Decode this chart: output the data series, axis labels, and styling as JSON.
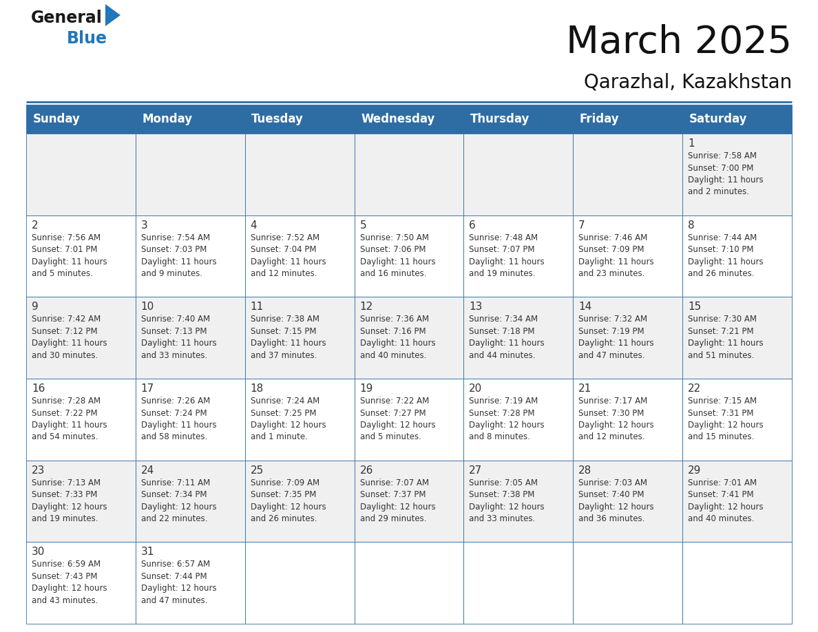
{
  "title": "March 2025",
  "subtitle": "Qarazhal, Kazakhstan",
  "header_bg": "#2E6DA4",
  "header_text": "#FFFFFF",
  "cell_bg_odd": "#F0F0F0",
  "cell_bg_even": "#FFFFFF",
  "border_color": "#2E6DA4",
  "text_color": "#333333",
  "days_of_week": [
    "Sunday",
    "Monday",
    "Tuesday",
    "Wednesday",
    "Thursday",
    "Friday",
    "Saturday"
  ],
  "calendar": [
    [
      {
        "day": null,
        "info": ""
      },
      {
        "day": null,
        "info": ""
      },
      {
        "day": null,
        "info": ""
      },
      {
        "day": null,
        "info": ""
      },
      {
        "day": null,
        "info": ""
      },
      {
        "day": null,
        "info": ""
      },
      {
        "day": 1,
        "info": "Sunrise: 7:58 AM\nSunset: 7:00 PM\nDaylight: 11 hours\nand 2 minutes."
      }
    ],
    [
      {
        "day": 2,
        "info": "Sunrise: 7:56 AM\nSunset: 7:01 PM\nDaylight: 11 hours\nand 5 minutes."
      },
      {
        "day": 3,
        "info": "Sunrise: 7:54 AM\nSunset: 7:03 PM\nDaylight: 11 hours\nand 9 minutes."
      },
      {
        "day": 4,
        "info": "Sunrise: 7:52 AM\nSunset: 7:04 PM\nDaylight: 11 hours\nand 12 minutes."
      },
      {
        "day": 5,
        "info": "Sunrise: 7:50 AM\nSunset: 7:06 PM\nDaylight: 11 hours\nand 16 minutes."
      },
      {
        "day": 6,
        "info": "Sunrise: 7:48 AM\nSunset: 7:07 PM\nDaylight: 11 hours\nand 19 minutes."
      },
      {
        "day": 7,
        "info": "Sunrise: 7:46 AM\nSunset: 7:09 PM\nDaylight: 11 hours\nand 23 minutes."
      },
      {
        "day": 8,
        "info": "Sunrise: 7:44 AM\nSunset: 7:10 PM\nDaylight: 11 hours\nand 26 minutes."
      }
    ],
    [
      {
        "day": 9,
        "info": "Sunrise: 7:42 AM\nSunset: 7:12 PM\nDaylight: 11 hours\nand 30 minutes."
      },
      {
        "day": 10,
        "info": "Sunrise: 7:40 AM\nSunset: 7:13 PM\nDaylight: 11 hours\nand 33 minutes."
      },
      {
        "day": 11,
        "info": "Sunrise: 7:38 AM\nSunset: 7:15 PM\nDaylight: 11 hours\nand 37 minutes."
      },
      {
        "day": 12,
        "info": "Sunrise: 7:36 AM\nSunset: 7:16 PM\nDaylight: 11 hours\nand 40 minutes."
      },
      {
        "day": 13,
        "info": "Sunrise: 7:34 AM\nSunset: 7:18 PM\nDaylight: 11 hours\nand 44 minutes."
      },
      {
        "day": 14,
        "info": "Sunrise: 7:32 AM\nSunset: 7:19 PM\nDaylight: 11 hours\nand 47 minutes."
      },
      {
        "day": 15,
        "info": "Sunrise: 7:30 AM\nSunset: 7:21 PM\nDaylight: 11 hours\nand 51 minutes."
      }
    ],
    [
      {
        "day": 16,
        "info": "Sunrise: 7:28 AM\nSunset: 7:22 PM\nDaylight: 11 hours\nand 54 minutes."
      },
      {
        "day": 17,
        "info": "Sunrise: 7:26 AM\nSunset: 7:24 PM\nDaylight: 11 hours\nand 58 minutes."
      },
      {
        "day": 18,
        "info": "Sunrise: 7:24 AM\nSunset: 7:25 PM\nDaylight: 12 hours\nand 1 minute."
      },
      {
        "day": 19,
        "info": "Sunrise: 7:22 AM\nSunset: 7:27 PM\nDaylight: 12 hours\nand 5 minutes."
      },
      {
        "day": 20,
        "info": "Sunrise: 7:19 AM\nSunset: 7:28 PM\nDaylight: 12 hours\nand 8 minutes."
      },
      {
        "day": 21,
        "info": "Sunrise: 7:17 AM\nSunset: 7:30 PM\nDaylight: 12 hours\nand 12 minutes."
      },
      {
        "day": 22,
        "info": "Sunrise: 7:15 AM\nSunset: 7:31 PM\nDaylight: 12 hours\nand 15 minutes."
      }
    ],
    [
      {
        "day": 23,
        "info": "Sunrise: 7:13 AM\nSunset: 7:33 PM\nDaylight: 12 hours\nand 19 minutes."
      },
      {
        "day": 24,
        "info": "Sunrise: 7:11 AM\nSunset: 7:34 PM\nDaylight: 12 hours\nand 22 minutes."
      },
      {
        "day": 25,
        "info": "Sunrise: 7:09 AM\nSunset: 7:35 PM\nDaylight: 12 hours\nand 26 minutes."
      },
      {
        "day": 26,
        "info": "Sunrise: 7:07 AM\nSunset: 7:37 PM\nDaylight: 12 hours\nand 29 minutes."
      },
      {
        "day": 27,
        "info": "Sunrise: 7:05 AM\nSunset: 7:38 PM\nDaylight: 12 hours\nand 33 minutes."
      },
      {
        "day": 28,
        "info": "Sunrise: 7:03 AM\nSunset: 7:40 PM\nDaylight: 12 hours\nand 36 minutes."
      },
      {
        "day": 29,
        "info": "Sunrise: 7:01 AM\nSunset: 7:41 PM\nDaylight: 12 hours\nand 40 minutes."
      }
    ],
    [
      {
        "day": 30,
        "info": "Sunrise: 6:59 AM\nSunset: 7:43 PM\nDaylight: 12 hours\nand 43 minutes."
      },
      {
        "day": 31,
        "info": "Sunrise: 6:57 AM\nSunset: 7:44 PM\nDaylight: 12 hours\nand 47 minutes."
      },
      {
        "day": null,
        "info": ""
      },
      {
        "day": null,
        "info": ""
      },
      {
        "day": null,
        "info": ""
      },
      {
        "day": null,
        "info": ""
      },
      {
        "day": null,
        "info": ""
      }
    ]
  ],
  "logo_text1": "General",
  "logo_text2": "Blue",
  "logo_color1": "#1a1a1a",
  "logo_color2": "#2277BB",
  "logo_triangle_color": "#2277BB",
  "title_fontsize": 40,
  "subtitle_fontsize": 20,
  "header_fontsize": 12,
  "day_number_fontsize": 11,
  "info_fontsize": 8.5,
  "fig_width": 11.88,
  "fig_height": 9.18,
  "dpi": 100
}
